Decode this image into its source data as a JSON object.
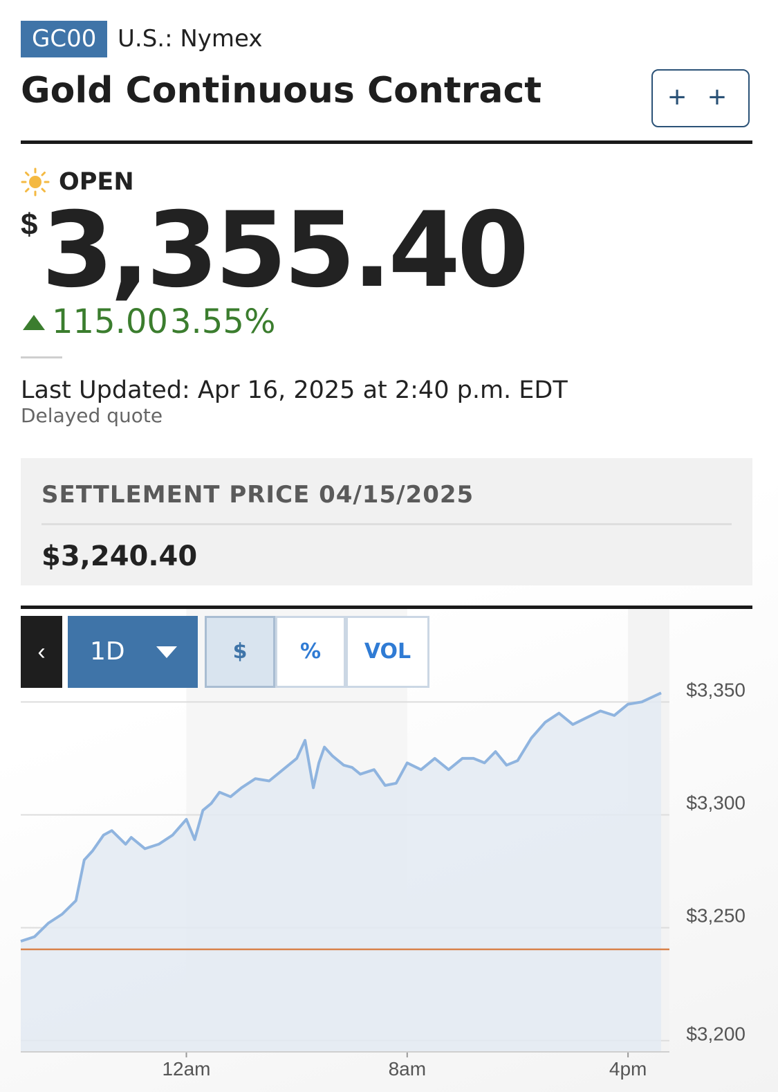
{
  "header": {
    "ticker": "GC00",
    "exchange": "U.S.: Nymex",
    "title": "Gold Continuous Contract",
    "watch_button_label": "+ +"
  },
  "quote": {
    "status": "OPEN",
    "status_icon": "sun-icon",
    "currency_symbol": "$",
    "price": "3,355.40",
    "change": "115.00",
    "change_pct": "3.55%",
    "change_direction_icon": "triangle-up-icon",
    "last_updated": "Last Updated: Apr 16, 2025 at 2:40 p.m. EDT",
    "delayed_note": "Delayed quote"
  },
  "settlement": {
    "label": "SETTLEMENT PRICE 04/15/2025",
    "value": "$3,240.40"
  },
  "chart_controls": {
    "back_icon": "chevron-left-icon",
    "range_selected": "1D",
    "range_caret_icon": "caret-down-icon",
    "modes": [
      "$",
      "%",
      "VOL"
    ],
    "selected_mode": "$"
  },
  "colors": {
    "accent": "#3f74a8",
    "positive": "#3b7d2e",
    "line": "#8fb4df",
    "area": "#e3eaf2",
    "reference_line": "#d9824a"
  },
  "chart_data": {
    "type": "area",
    "x_tick_labels": [
      "12am",
      "8am",
      "4pm"
    ],
    "y_tick_labels": [
      "$3,350",
      "$3,300",
      "$3,250",
      "$3,200"
    ],
    "y_ticks": [
      3350,
      3300,
      3250,
      3200
    ],
    "ylim": [
      3195,
      3355
    ],
    "xlim_hours": [
      -6,
      17.5
    ],
    "x_tick_hours": [
      0,
      8,
      16
    ],
    "reference_line": 3240.4,
    "grid": true,
    "series": [
      {
        "x_hours": [
          -6,
          -5.5,
          -5,
          -4.5,
          -4,
          -3.7,
          -3.4,
          -3,
          -2.7,
          -2.2,
          -2,
          -1.5,
          -1,
          -0.5,
          0,
          0.3,
          0.6,
          0.9,
          1.2,
          1.6,
          2,
          2.5,
          3,
          3.5,
          4,
          4.3,
          4.6,
          4.8,
          5,
          5.3,
          5.7,
          6,
          6.3,
          6.8,
          7.2,
          7.6,
          8,
          8.5,
          9,
          9.5,
          10,
          10.4,
          10.8,
          11.2,
          11.6,
          12,
          12.5,
          13,
          13.5,
          14,
          14.5,
          15,
          15.5,
          16,
          16.5,
          17.2
        ],
        "y": [
          3244,
          3246,
          3252,
          3256,
          3262,
          3280,
          3284,
          3291,
          3293,
          3287,
          3290,
          3285,
          3287,
          3291,
          3298,
          3289,
          3302,
          3305,
          3310,
          3308,
          3312,
          3316,
          3315,
          3320,
          3325,
          3333,
          3312,
          3323,
          3330,
          3326,
          3322,
          3321,
          3318,
          3320,
          3313,
          3314,
          3323,
          3320,
          3325,
          3320,
          3325,
          3325,
          3323,
          3328,
          3322,
          3324,
          3334,
          3341,
          3345,
          3340,
          3343,
          3346,
          3344,
          3349,
          3350,
          3354
        ]
      }
    ]
  }
}
